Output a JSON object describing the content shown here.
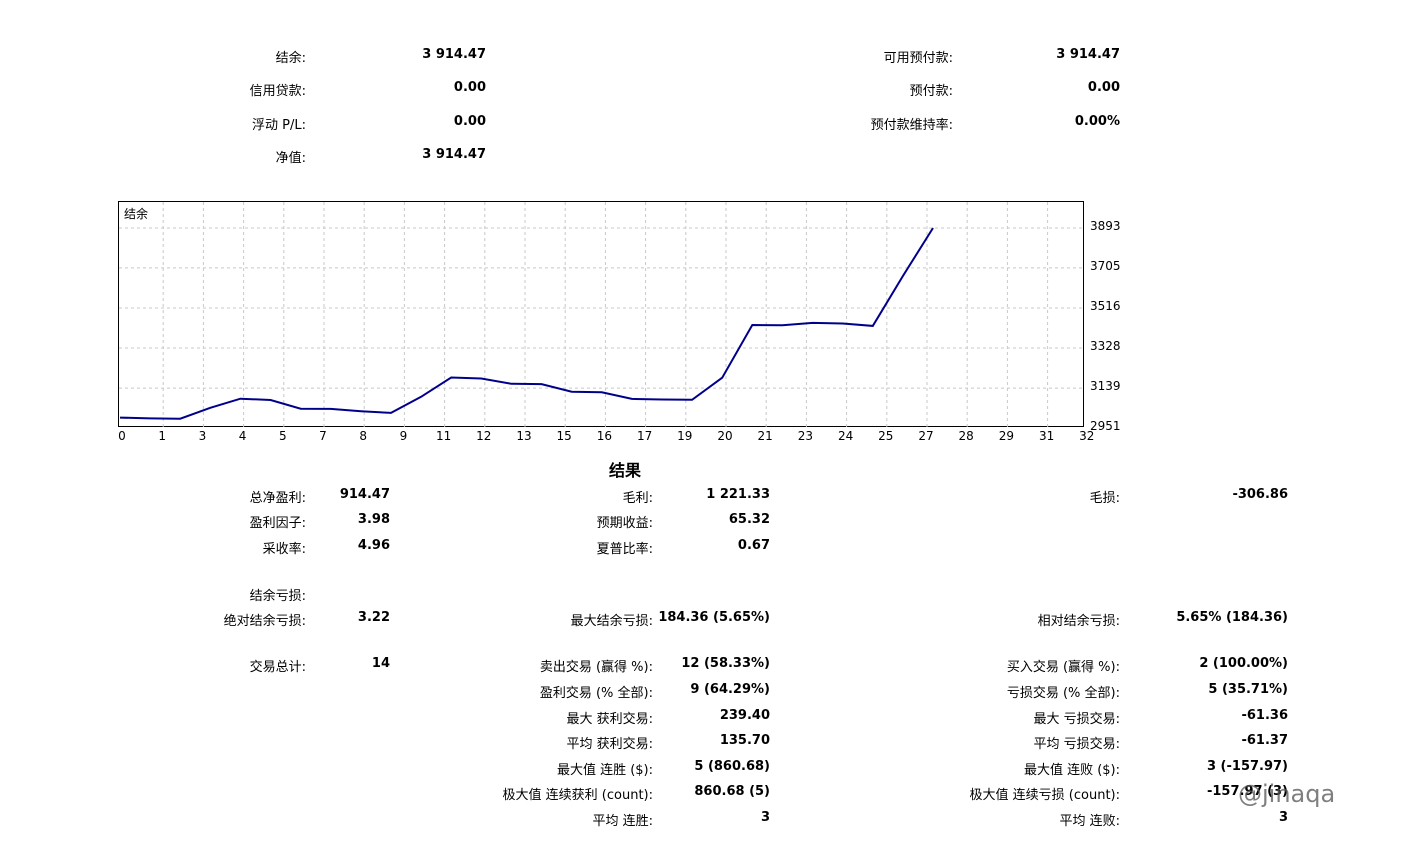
{
  "summary": {
    "balance_label": "结余:",
    "balance_value": "3 914.47",
    "credit_label": "信用贷款:",
    "credit_value": "0.00",
    "floating_label": "浮动 P/L:",
    "floating_value": "0.00",
    "equity_label": "净值:",
    "equity_value": "3 914.47",
    "free_margin_label": "可用预付款:",
    "free_margin_value": "3 914.47",
    "margin_label": "预付款:",
    "margin_value": "0.00",
    "margin_level_label": "预付款维持率:",
    "margin_level_value": "0.00%"
  },
  "chart_data": {
    "type": "line",
    "title": "结余",
    "x_ticks": [
      "0",
      "1",
      "3",
      "4",
      "5",
      "7",
      "8",
      "9",
      "11",
      "12",
      "13",
      "15",
      "16",
      "17",
      "19",
      "20",
      "21",
      "23",
      "24",
      "25",
      "27",
      "28",
      "29",
      "31",
      "32"
    ],
    "y_ticks": [
      "2951",
      "3139",
      "3328",
      "3516",
      "3705",
      "3893"
    ],
    "ylim": [
      2951,
      3893
    ],
    "grid": true,
    "series": [
      {
        "values": [
          3000,
          2996,
          2995,
          3046,
          3089,
          3083,
          3042,
          3041,
          3030,
          3022,
          3098,
          3189,
          3184,
          3159,
          3158,
          3122,
          3119,
          3088,
          3085,
          3084,
          3188,
          3436,
          3435,
          3446,
          3443,
          3432,
          3667,
          3893
        ]
      }
    ],
    "line_color": "#00008B"
  },
  "results": {
    "title": "结果",
    "total_net_profit_label": "总净盈利:",
    "total_net_profit_value": "914.47",
    "gross_profit_label": "毛利:",
    "gross_profit_value": "1 221.33",
    "gross_loss_label": "毛损:",
    "gross_loss_value": "-306.86",
    "profit_factor_label": "盈利因子:",
    "profit_factor_value": "3.98",
    "expected_payoff_label": "预期收益:",
    "expected_payoff_value": "65.32",
    "recovery_factor_label": "采收率:",
    "recovery_factor_value": "4.96",
    "sharpe_label": "夏普比率:",
    "sharpe_value": "0.67",
    "balance_drawdown_label": "结余亏损:",
    "abs_drawdown_label": "绝对结余亏损:",
    "abs_drawdown_value": "3.22",
    "max_drawdown_label": "最大结余亏损:",
    "max_drawdown_value": "184.36 (5.65%)",
    "rel_drawdown_label": "相对结余亏损:",
    "rel_drawdown_value": "5.65% (184.36)",
    "total_trades_label": "交易总计:",
    "total_trades_value": "14",
    "short_trades_label": "卖出交易 (赢得 %):",
    "short_trades_value": "12 (58.33%)",
    "long_trades_label": "买入交易 (赢得 %):",
    "long_trades_value": "2 (100.00%)",
    "profit_trades_label": "盈利交易 (% 全部):",
    "profit_trades_value": "9 (64.29%)",
    "loss_trades_label": "亏损交易 (% 全部):",
    "loss_trades_value": "5 (35.71%)",
    "largest_profit_label": "最大 获利交易:",
    "largest_profit_value": "239.40",
    "largest_loss_label": "最大 亏损交易:",
    "largest_loss_value": "-61.36",
    "avg_profit_label": "平均 获利交易:",
    "avg_profit_value": "135.70",
    "avg_loss_label": "平均 亏损交易:",
    "avg_loss_value": "-61.37",
    "max_consec_wins_label": "最大值 连胜 ($):",
    "max_consec_wins_value": "5 (860.68)",
    "max_consec_losses_label": "最大值 连败 ($):",
    "max_consec_losses_value": "3 (-157.97)",
    "maximal_consec_profit_label": "极大值 连续获利 (count):",
    "maximal_consec_profit_value": "860.68 (5)",
    "maximal_consec_loss_label": "极大值 连续亏损 (count):",
    "maximal_consec_loss_value": "-157.97 (3)",
    "avg_consec_wins_label": "平均 连胜:",
    "avg_consec_wins_value": "3",
    "avg_consec_losses_label": "平均 连败:",
    "avg_consec_losses_value": "3"
  },
  "watermark": {
    "text": "@jinaqa"
  }
}
